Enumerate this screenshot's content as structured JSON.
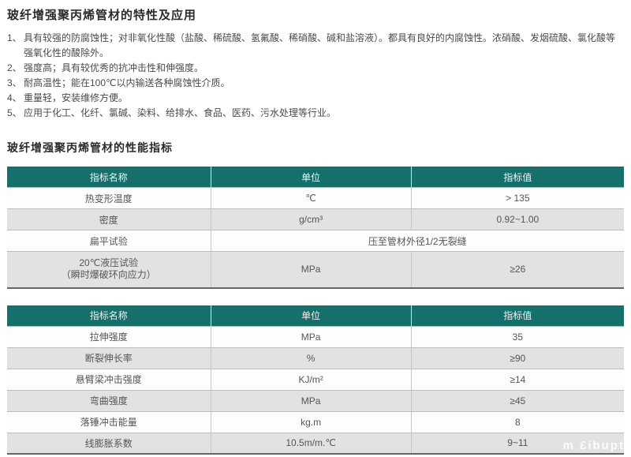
{
  "section1": {
    "title": "玻纤增强聚丙烯管材的特性及应用",
    "items": [
      {
        "num": "1、",
        "text": "具有较强的防腐蚀性；对非氧化性酸（盐酸、稀硫酸、氢氟酸、稀硝酸、碱和盐溶液）。都具有良好的内腐蚀性。浓硝酸、发烟硫酸、氯化酸等强氧化性的酸除外。"
      },
      {
        "num": "2、",
        "text": "强度高；具有较优秀的抗冲击性和伸强度。"
      },
      {
        "num": "3、",
        "text": "耐高温性；能在100℃以内输送各种腐蚀性介质。"
      },
      {
        "num": "4、",
        "text": "重量轻，安装维修方便。"
      },
      {
        "num": "5、",
        "text": "应用于化工、化纤、氯碱、染料、给排水、食品、医药、污水处理等行业。"
      }
    ]
  },
  "section2": {
    "title": "玻纤增强聚丙烯管材的性能指标"
  },
  "table1": {
    "headers": [
      "指标名称",
      "单位",
      "指标值"
    ],
    "rows": [
      {
        "name": "热变形温度",
        "unit": "℃",
        "value": "> 135"
      },
      {
        "name": "密度",
        "unit": "g/cm³",
        "value": "0.92~1.00"
      },
      {
        "name": "扁平试验",
        "merged": "压至管材外径1/2无裂缝"
      },
      {
        "name_line1": "20℃液压试验",
        "name_line2": "（瞬时爆破环向应力）",
        "unit": "MPa",
        "value": "≥26"
      }
    ]
  },
  "table2": {
    "headers": [
      "指标名称",
      "单位",
      "指标值"
    ],
    "rows": [
      {
        "name": "拉伸强度",
        "unit": "MPa",
        "value": "35"
      },
      {
        "name": "断裂伸长率",
        "unit": "%",
        "value": "≥90"
      },
      {
        "name": "悬臂梁冲击强度",
        "unit": "KJ/m²",
        "value": "≥14"
      },
      {
        "name": "弯曲强度",
        "unit": "MPa",
        "value": "≥45"
      },
      {
        "name": "落锤冲击能量",
        "unit": "kg.m",
        "value": "8"
      },
      {
        "name": "线膨胀系数",
        "unit": "10.5m/m.℃",
        "value": "9~11"
      }
    ]
  },
  "watermark": "m £ibupt",
  "colors": {
    "header_teal": "#156f6b",
    "row_gray": "#e2e2e2"
  }
}
